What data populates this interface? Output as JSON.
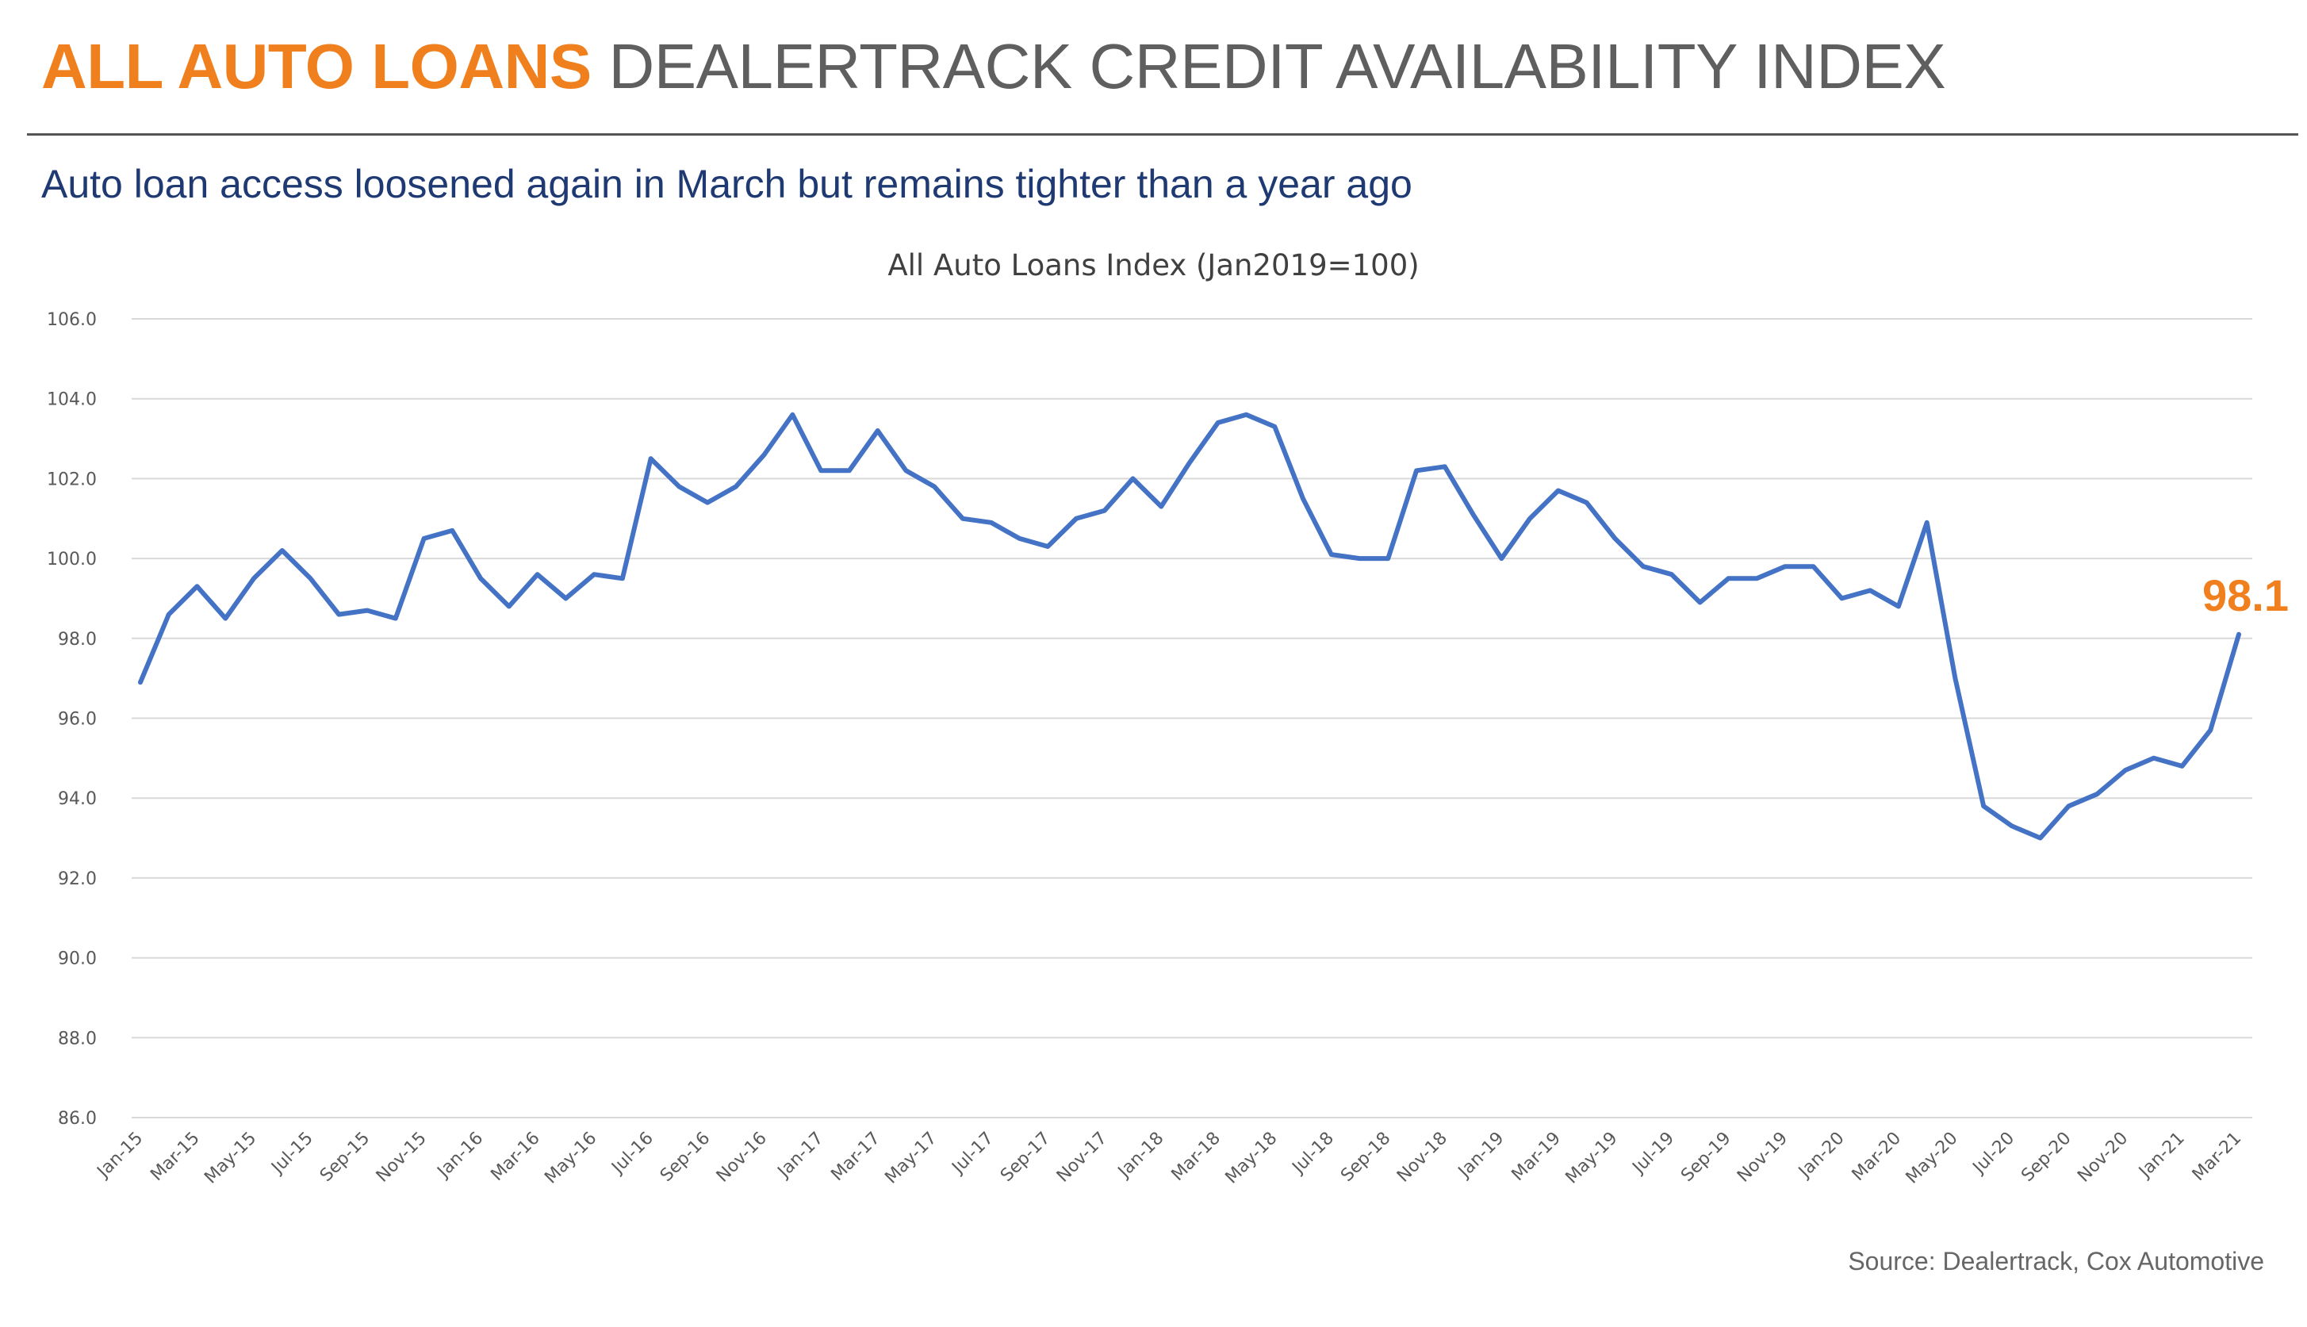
{
  "header": {
    "title_accent": "ALL AUTO LOANS",
    "title_rest": "DEALERTRACK CREDIT AVAILABILITY INDEX",
    "subtitle": "Auto loan access loosened again in March but remains tighter than a year ago"
  },
  "source": "Source: Dealertrack, Cox Automotive",
  "colors": {
    "accent": "#F07F1D",
    "line": "#4472C4",
    "subtitle": "#1F3A73",
    "grid": "#d9d9d9"
  },
  "chart_data": {
    "type": "line",
    "title": "All Auto Loans Index (Jan2019=100)",
    "xlabel": "",
    "ylabel": "",
    "ylim": [
      86,
      106
    ],
    "yticks": [
      "86.0",
      "88.0",
      "90.0",
      "92.0",
      "94.0",
      "96.0",
      "98.0",
      "100.0",
      "102.0",
      "104.0",
      "106.0"
    ],
    "grid": true,
    "legend": "none",
    "end_label": "98.1",
    "x": [
      "Jan-15",
      "Feb-15",
      "Mar-15",
      "Apr-15",
      "May-15",
      "Jun-15",
      "Jul-15",
      "Aug-15",
      "Sep-15",
      "Oct-15",
      "Nov-15",
      "Dec-15",
      "Jan-16",
      "Feb-16",
      "Mar-16",
      "Apr-16",
      "May-16",
      "Jun-16",
      "Jul-16",
      "Aug-16",
      "Sep-16",
      "Oct-16",
      "Nov-16",
      "Dec-16",
      "Jan-17",
      "Feb-17",
      "Mar-17",
      "Apr-17",
      "May-17",
      "Jun-17",
      "Jul-17",
      "Aug-17",
      "Sep-17",
      "Oct-17",
      "Nov-17",
      "Dec-17",
      "Jan-18",
      "Feb-18",
      "Mar-18",
      "Apr-18",
      "May-18",
      "Jun-18",
      "Jul-18",
      "Aug-18",
      "Sep-18",
      "Oct-18",
      "Nov-18",
      "Dec-18",
      "Jan-19",
      "Feb-19",
      "Mar-19",
      "Apr-19",
      "May-19",
      "Jun-19",
      "Jul-19",
      "Aug-19",
      "Sep-19",
      "Oct-19",
      "Nov-19",
      "Dec-19",
      "Jan-20",
      "Feb-20",
      "Mar-20",
      "Apr-20",
      "May-20",
      "Jun-20",
      "Jul-20",
      "Aug-20",
      "Sep-20",
      "Oct-20",
      "Nov-20",
      "Dec-20",
      "Jan-21",
      "Feb-21",
      "Mar-21"
    ],
    "x_tick_labels": [
      "Jan-15",
      "Mar-15",
      "May-15",
      "Jul-15",
      "Sep-15",
      "Nov-15",
      "Jan-16",
      "Mar-16",
      "May-16",
      "Jul-16",
      "Sep-16",
      "Nov-16",
      "Jan-17",
      "Mar-17",
      "May-17",
      "Jul-17",
      "Sep-17",
      "Nov-17",
      "Jan-18",
      "Mar-18",
      "May-18",
      "Jul-18",
      "Sep-18",
      "Nov-18",
      "Jan-19",
      "Mar-19",
      "May-19",
      "Jul-19",
      "Sep-19",
      "Nov-19",
      "Jan-20",
      "Mar-20",
      "May-20",
      "Jul-20",
      "Sep-20",
      "Nov-20",
      "Jan-21",
      "Mar-21"
    ],
    "series": [
      {
        "values": [
          96.9,
          98.6,
          99.3,
          98.5,
          99.5,
          100.2,
          99.5,
          98.6,
          98.7,
          98.5,
          100.5,
          100.7,
          99.5,
          98.8,
          99.6,
          99.0,
          99.6,
          99.5,
          102.5,
          101.8,
          101.4,
          101.8,
          102.6,
          103.6,
          102.2,
          102.2,
          103.2,
          102.2,
          101.8,
          101.0,
          100.9,
          100.5,
          100.3,
          101.0,
          101.2,
          102.0,
          101.3,
          102.4,
          103.4,
          103.6,
          103.3,
          101.5,
          100.1,
          100.0,
          100.0,
          102.2,
          102.3,
          101.1,
          100.0,
          101.0,
          101.7,
          101.4,
          100.5,
          99.8,
          99.6,
          98.9,
          99.5,
          99.5,
          99.8,
          99.8,
          99.0,
          99.2,
          98.8,
          100.9,
          97.0,
          93.8,
          93.3,
          93.0,
          93.8,
          94.1,
          94.7,
          95.0,
          94.8,
          95.7,
          98.1
        ]
      }
    ]
  }
}
